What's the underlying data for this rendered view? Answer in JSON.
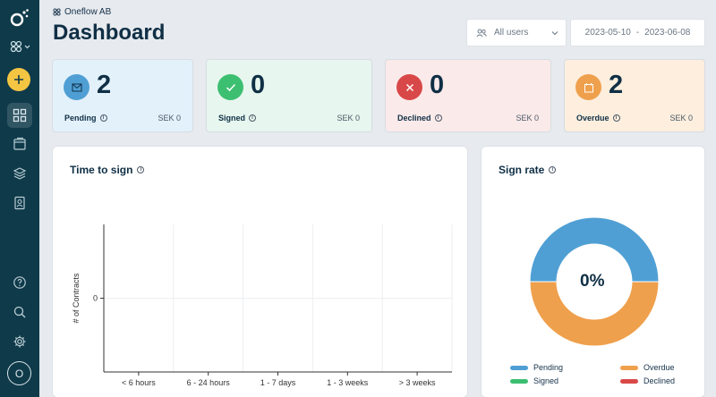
{
  "workspace": {
    "name": "Oneflow AB"
  },
  "page": {
    "title": "Dashboard"
  },
  "filters": {
    "users": "All users",
    "date_from": "2023-05-10",
    "date_sep": "-",
    "date_to": "2023-06-08"
  },
  "stats": [
    {
      "key": "pending",
      "count": "2",
      "label": "Pending",
      "amount": "SEK 0",
      "bg": "#e3f1fb",
      "accent": "#4f9fd4"
    },
    {
      "key": "signed",
      "count": "0",
      "label": "Signed",
      "amount": "SEK 0",
      "bg": "#e7f6ee",
      "accent": "#3dbf72"
    },
    {
      "key": "declined",
      "count": "0",
      "label": "Declined",
      "amount": "SEK 0",
      "bg": "#fbeaea",
      "accent": "#d94848"
    },
    {
      "key": "overdue",
      "count": "2",
      "label": "Overdue",
      "amount": "SEK 0",
      "bg": "#fdeede",
      "accent": "#efa04c"
    }
  ],
  "time_to_sign": {
    "title": "Time to sign"
  },
  "sign_rate": {
    "title": "Sign rate",
    "center": "0%",
    "legend": [
      {
        "label": "Pending",
        "color": "#4f9fd4"
      },
      {
        "label": "Overdue",
        "color": "#efa04c"
      },
      {
        "label": "Signed",
        "color": "#3dbf72"
      },
      {
        "label": "Declined",
        "color": "#d94848"
      }
    ]
  },
  "chart_data": [
    {
      "type": "bar",
      "title": "Time to sign",
      "xlabel": "",
      "ylabel": "# of Contracts",
      "categories": [
        "< 6 hours",
        "6 - 24 hours",
        "1 - 7 days",
        "1 - 3 weeks",
        "> 3 weeks"
      ],
      "values": [
        0,
        0,
        0,
        0,
        0
      ],
      "yticks": [
        "0"
      ],
      "grid": true
    },
    {
      "type": "pie",
      "title": "Sign rate",
      "center_label": "0%",
      "labels": [
        "Pending",
        "Overdue",
        "Signed",
        "Declined"
      ],
      "values": [
        2,
        2,
        0,
        0
      ],
      "colors": [
        "#4f9fd4",
        "#efa04c",
        "#3dbf72",
        "#d94848"
      ],
      "legend": "bottom"
    }
  ]
}
